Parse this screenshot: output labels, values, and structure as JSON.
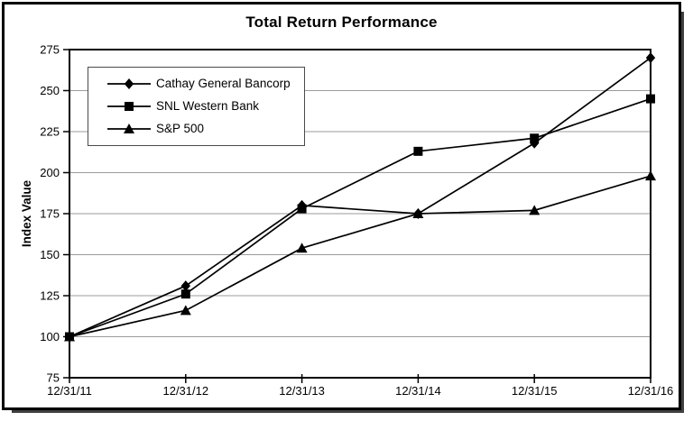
{
  "colors": {
    "background": "#ffffff",
    "frame_border": "#000000",
    "shadow": "#3f3f3f",
    "text": "#000000",
    "legend_border": "#4a4a4a"
  },
  "chart_data": {
    "type": "line",
    "title": "Total Return Performance",
    "xlabel": "",
    "ylabel": "Index Value",
    "categories": [
      "12/31/11",
      "12/31/12",
      "12/31/13",
      "12/31/14",
      "12/31/15",
      "12/31/16"
    ],
    "series": [
      {
        "name": "Cathay General Bancorp",
        "marker": "diamond",
        "values": [
          100,
          131,
          180,
          175,
          218,
          270
        ]
      },
      {
        "name": "SNL Western Bank",
        "marker": "square",
        "values": [
          100,
          126,
          178,
          213,
          221,
          245
        ]
      },
      {
        "name": "S&P 500",
        "marker": "triangle",
        "values": [
          100,
          116,
          154,
          175,
          177,
          198
        ]
      }
    ],
    "ylim": [
      75,
      275
    ],
    "yticks": [
      75,
      100,
      125,
      150,
      175,
      200,
      225,
      250,
      275
    ],
    "grid": true,
    "legend_position": "upper-left-inside",
    "line_color": "#000000",
    "grid_color": "#9b9b9b"
  }
}
